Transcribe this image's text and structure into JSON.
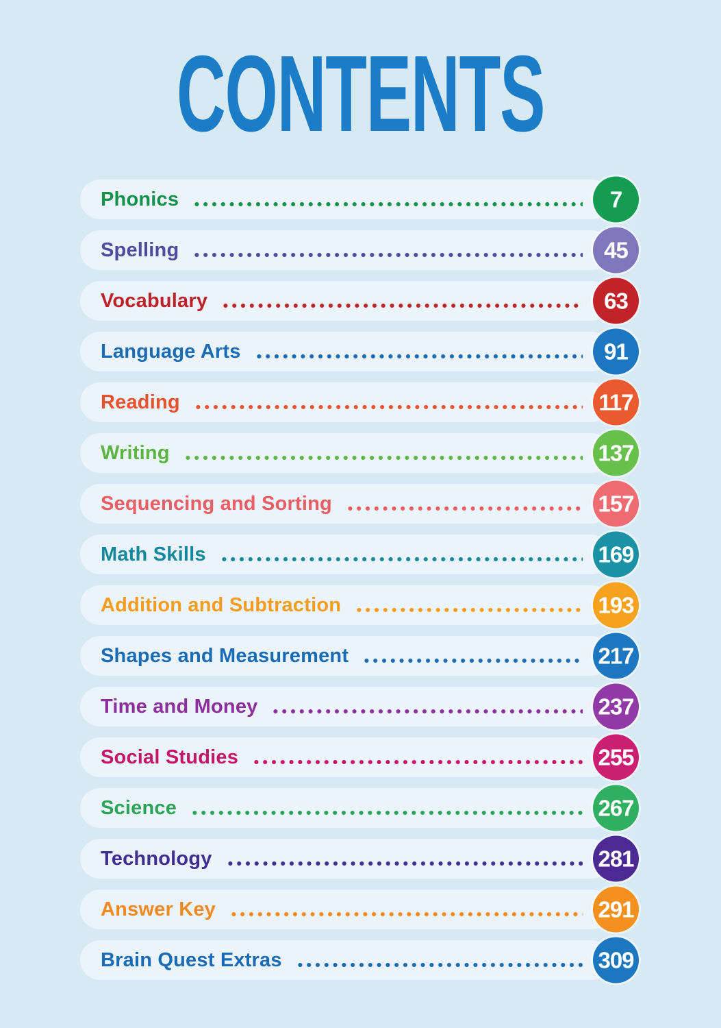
{
  "page": {
    "title": "CONTENTS",
    "title_color": "#1B7CC8",
    "background_color": "#D7E9F2",
    "pill_color": "#EBF4FA"
  },
  "toc": {
    "items": [
      {
        "label": "Phonics",
        "page": 7,
        "color": "#13914A",
        "badge_color": "#149D52"
      },
      {
        "label": "Spelling",
        "page": 45,
        "color": "#4E4A9D",
        "badge_color": "#7F76BC"
      },
      {
        "label": "Vocabulary",
        "page": 63,
        "color": "#BE2127",
        "badge_color": "#C22329"
      },
      {
        "label": "Language Arts",
        "page": 91,
        "color": "#186BB4",
        "badge_color": "#1C77C0"
      },
      {
        "label": "Reading",
        "page": 117,
        "color": "#E8512B",
        "badge_color": "#EB5A2E"
      },
      {
        "label": "Writing",
        "page": 137,
        "color": "#5CB542",
        "badge_color": "#67BF4C"
      },
      {
        "label": "Sequencing and Sorting",
        "page": 157,
        "color": "#E95D63",
        "badge_color": "#EE6B71"
      },
      {
        "label": "Math Skills",
        "page": 169,
        "color": "#13879B",
        "badge_color": "#1A91A5"
      },
      {
        "label": "Addition and Subtraction",
        "page": 193,
        "color": "#F49C20",
        "badge_color": "#F6A21F"
      },
      {
        "label": "Shapes and Measurement",
        "page": 217,
        "color": "#186BB4",
        "badge_color": "#1C77C0"
      },
      {
        "label": "Time and Money",
        "page": 237,
        "color": "#8B2F9D",
        "badge_color": "#9139A6"
      },
      {
        "label": "Social Studies",
        "page": 255,
        "color": "#C4156A",
        "badge_color": "#CB2071"
      },
      {
        "label": "Science",
        "page": 267,
        "color": "#2CA457",
        "badge_color": "#2FAF5F"
      },
      {
        "label": "Technology",
        "page": 281,
        "color": "#3F2D91",
        "badge_color": "#4C2A94"
      },
      {
        "label": "Answer Key",
        "page": 291,
        "color": "#F08A20",
        "badge_color": "#F3901F"
      },
      {
        "label": "Brain Quest Extras",
        "page": 309,
        "color": "#186BB4",
        "badge_color": "#1C77C0"
      }
    ]
  }
}
